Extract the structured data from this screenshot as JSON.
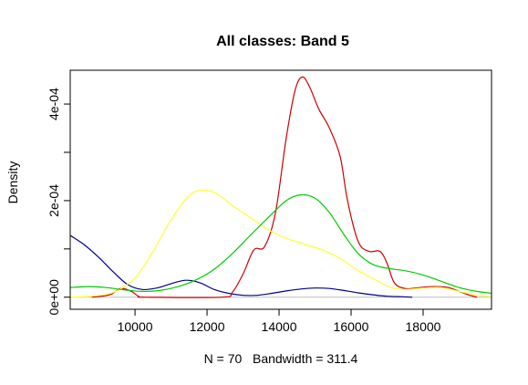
{
  "chart_data": {
    "type": "line",
    "title": "All classes: Band 5",
    "xlabel": "N = 70   Bandwidth = 311.4",
    "ylabel": "Density",
    "xlim": [
      8200,
      19900
    ],
    "ylim": [
      -2.5e-05,
      0.00047
    ],
    "x_ticks": [
      10000,
      12000,
      14000,
      16000,
      18000
    ],
    "x_tick_labels": [
      "10000",
      "12000",
      "14000",
      "16000",
      "18000"
    ],
    "y_ticks": [
      0,
      0.0001,
      0.0002,
      0.0003,
      0.0004
    ],
    "y_tick_labels": [
      "0e+00",
      "",
      "2e-04",
      "",
      "4e-04"
    ],
    "grid": false,
    "baseline": {
      "y": 0,
      "color": "#BEBEBE"
    },
    "series": [
      {
        "color": "#00008B",
        "points": [
          [
            8200,
            0.000128
          ],
          [
            8600,
            0.000108
          ],
          [
            9000,
            8.2e-05
          ],
          [
            9400,
            5.2e-05
          ],
          [
            9800,
            2.6e-05
          ],
          [
            10200,
            1.6e-05
          ],
          [
            10600,
            1.9e-05
          ],
          [
            11000,
            2.8e-05
          ],
          [
            11400,
            3.5e-05
          ],
          [
            11800,
            3e-05
          ],
          [
            12200,
            1.6e-05
          ],
          [
            12600,
            8e-06
          ],
          [
            13000,
            4e-06
          ],
          [
            13400,
            4e-06
          ],
          [
            13800,
            8e-06
          ],
          [
            14200,
            1.3e-05
          ],
          [
            14600,
            1.7e-05
          ],
          [
            15000,
            1.9e-05
          ],
          [
            15400,
            1.8e-05
          ],
          [
            15800,
            1.4e-05
          ],
          [
            16200,
            9e-06
          ],
          [
            16600,
            5e-06
          ],
          [
            17000,
            2e-06
          ],
          [
            17400,
            1e-06
          ],
          [
            17700,
            0.0
          ]
        ]
      },
      {
        "color": "#CC0000",
        "points": [
          [
            8800,
            0.0
          ],
          [
            9300,
            5e-06
          ],
          [
            9600,
            1.8e-05
          ],
          [
            9900,
            1.2e-05
          ],
          [
            10100,
            2e-06
          ],
          [
            10300,
            0.0
          ],
          [
            12400,
            0.0
          ],
          [
            12700,
            1e-05
          ],
          [
            13000,
            4.8e-05
          ],
          [
            13300,
            9.8e-05
          ],
          [
            13600,
            0.000105
          ],
          [
            13900,
            0.000175
          ],
          [
            14200,
            0.00033
          ],
          [
            14450,
            0.00043
          ],
          [
            14650,
            0.000456
          ],
          [
            14850,
            0.000435
          ],
          [
            15100,
            0.00039
          ],
          [
            15400,
            0.00035
          ],
          [
            15700,
            0.00029
          ],
          [
            15900,
            0.0002
          ],
          [
            16200,
            0.000115
          ],
          [
            16500,
            9.5e-05
          ],
          [
            16800,
            9.5e-05
          ],
          [
            17000,
            7e-05
          ],
          [
            17200,
            3e-05
          ],
          [
            17500,
            1.8e-05
          ],
          [
            17900,
            2e-05
          ],
          [
            18300,
            2.2e-05
          ],
          [
            18700,
            2e-05
          ],
          [
            19000,
            1.2e-05
          ],
          [
            19300,
            4e-06
          ],
          [
            19500,
            0.0
          ]
        ]
      },
      {
        "color": "#FFFF33",
        "points": [
          [
            8200,
            0.0
          ],
          [
            8800,
            2e-06
          ],
          [
            9400,
            1e-05
          ],
          [
            10000,
            4e-05
          ],
          [
            10500,
            9.5e-05
          ],
          [
            11000,
            0.00016
          ],
          [
            11500,
            0.00021
          ],
          [
            11900,
            0.000222
          ],
          [
            12300,
            0.000213
          ],
          [
            12700,
            0.00019
          ],
          [
            13200,
            0.000165
          ],
          [
            13700,
            0.00014
          ],
          [
            14200,
            0.000122
          ],
          [
            14700,
            0.00011
          ],
          [
            15200,
            9.8e-05
          ],
          [
            15700,
            8e-05
          ],
          [
            16200,
            5.5e-05
          ],
          [
            16700,
            3.5e-05
          ],
          [
            17100,
            2e-05
          ],
          [
            17500,
            1.6e-05
          ],
          [
            18000,
            1.9e-05
          ],
          [
            18500,
            2e-05
          ],
          [
            19000,
            1.2e-05
          ],
          [
            19500,
            4e-06
          ],
          [
            19900,
            1e-06
          ]
        ]
      },
      {
        "color": "#00CC00",
        "points": [
          [
            8200,
            2e-05
          ],
          [
            8700,
            2.2e-05
          ],
          [
            9200,
            2e-05
          ],
          [
            9700,
            1.5e-05
          ],
          [
            10200,
            1.2e-05
          ],
          [
            10700,
            1.4e-05
          ],
          [
            11200,
            2.2e-05
          ],
          [
            11700,
            3.6e-05
          ],
          [
            12200,
            5.8e-05
          ],
          [
            12700,
            9e-05
          ],
          [
            13200,
            0.000128
          ],
          [
            13700,
            0.000165
          ],
          [
            14200,
            0.0002
          ],
          [
            14600,
            0.000212
          ],
          [
            15000,
            0.000205
          ],
          [
            15400,
            0.000175
          ],
          [
            15800,
            0.00013
          ],
          [
            16200,
            9e-05
          ],
          [
            16600,
            6.8e-05
          ],
          [
            17000,
            6e-05
          ],
          [
            17500,
            5.5e-05
          ],
          [
            18000,
            4.6e-05
          ],
          [
            18500,
            3.3e-05
          ],
          [
            19000,
            2e-05
          ],
          [
            19500,
            1.2e-05
          ],
          [
            19900,
            8e-06
          ]
        ]
      }
    ]
  }
}
